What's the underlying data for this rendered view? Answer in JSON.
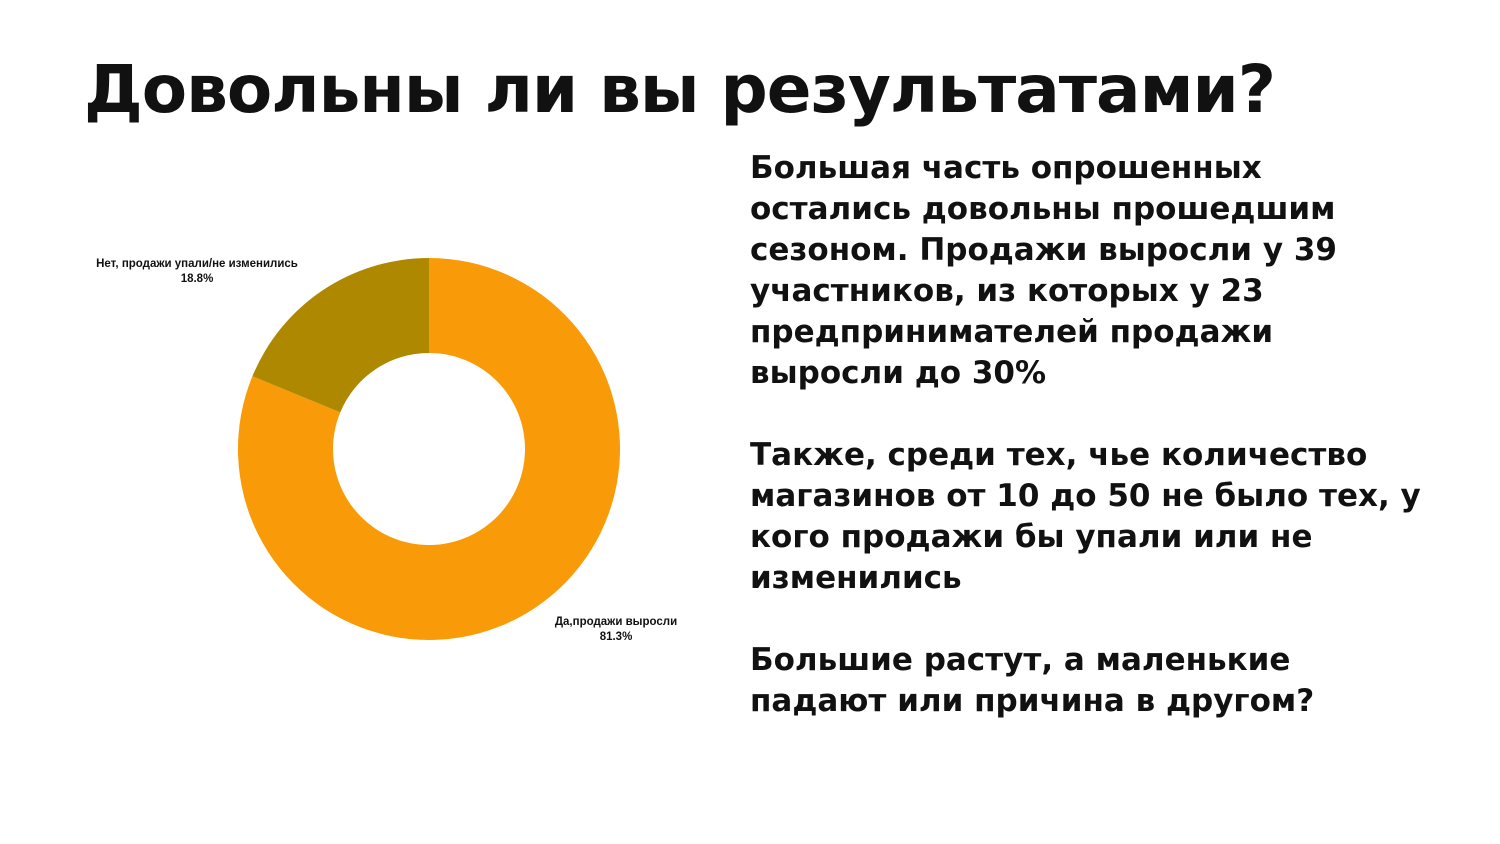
{
  "slide": {
    "title": "Довольны ли вы результатами?",
    "paragraphs": [
      "Большая часть опрошенных\nостались довольны прошедшим\nсезоном. Продажи выросли у 39\nучастников, из которых у 23\nпредпринимателей продажи\nвыросли до 30%",
      "Также, среди тех, чье количество\nмагазинов от 10 до 50 не было тех, у\nкого продажи бы упали или не\nизменились",
      "Большие растут, а маленькие\nпадают или причина в другом?"
    ]
  },
  "chart_data": {
    "type": "pie",
    "donut": true,
    "title": "",
    "slices": [
      {
        "label": "Да,продажи выросли",
        "value": 81.3,
        "display": "81.3%",
        "color": "#F99B08"
      },
      {
        "label": "Нет, продажи упали/не изменились",
        "value": 18.8,
        "display": "18.8%",
        "color": "#AE8900"
      }
    ],
    "start_angle_deg": 0,
    "direction": "clockwise",
    "legend": "none"
  }
}
